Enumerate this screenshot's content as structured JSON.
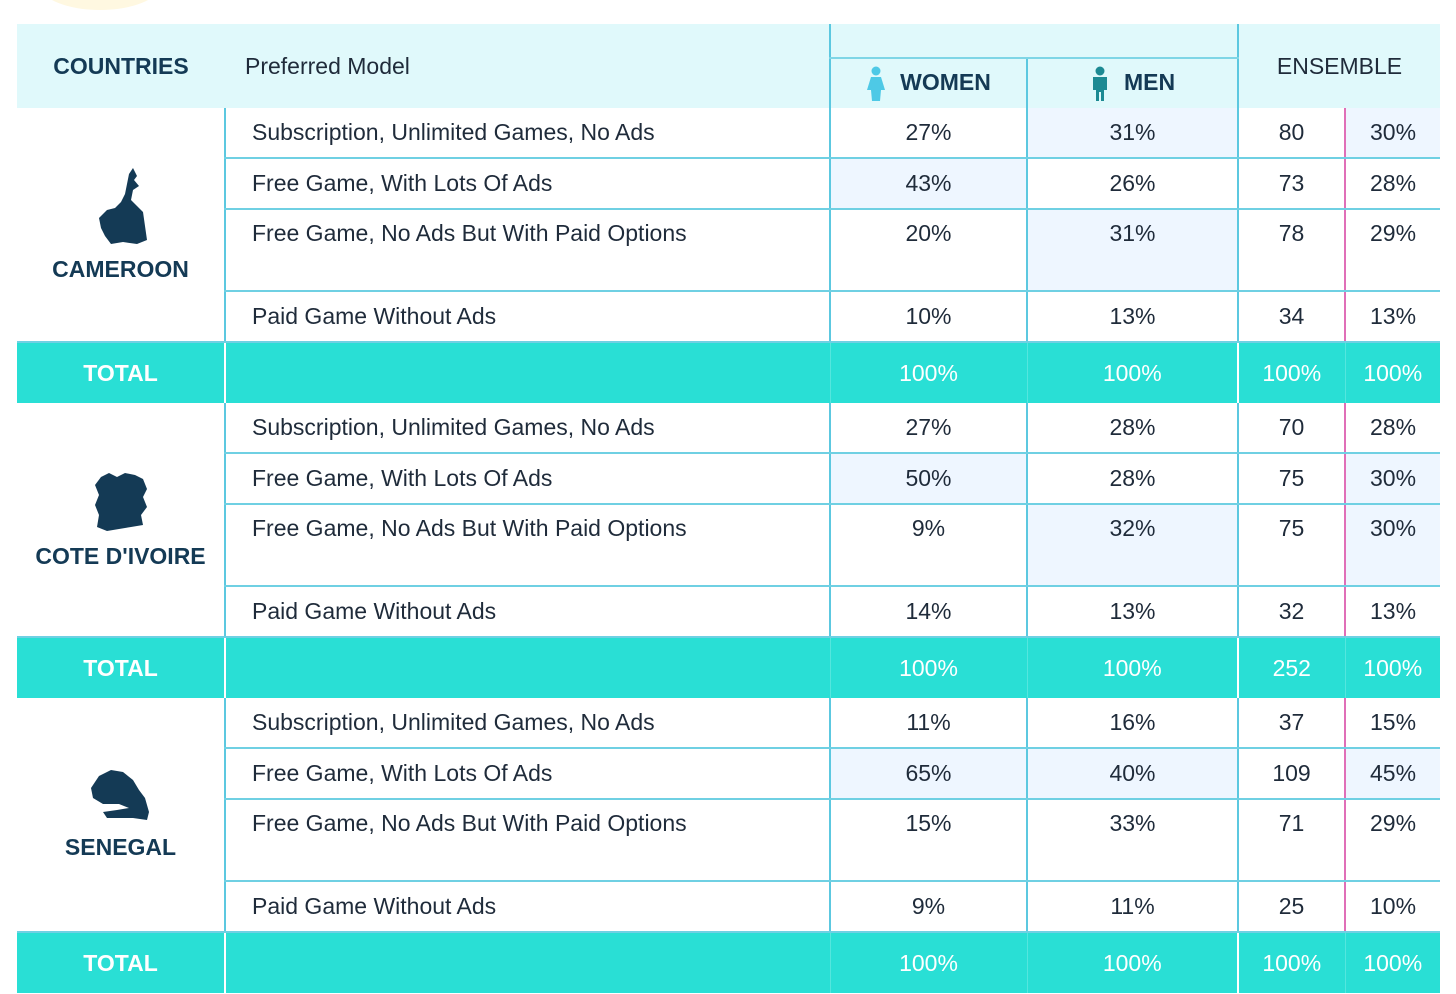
{
  "header": {
    "countries": "COUNTRIES",
    "preferred_model": "Preferred Model",
    "women": "WOMEN",
    "men": "MEN",
    "ensemble": "ENSEMBLE"
  },
  "colors": {
    "accent": "#29dfd5",
    "header_bg": "#e0f9fb",
    "country": "#143a55",
    "icon_women": "#4ec9e6",
    "icon_men": "#1d8a93"
  },
  "total_label": "TOTAL",
  "groups": [
    {
      "country": "CAMEROON",
      "map_icon": "cameroon-map-icon",
      "rows": [
        {
          "model": "Subscription, Unlimited Games, No Ads",
          "women": "27%",
          "men": "31%",
          "count": "80",
          "pct": "30%"
        },
        {
          "model": "Free Game, With Lots Of Ads",
          "women": "43%",
          "men": "26%",
          "count": "73",
          "pct": "28%"
        },
        {
          "model": "Free Game, No Ads But With Paid Options",
          "women": "20%",
          "men": "31%",
          "count": "78",
          "pct": "29%"
        },
        {
          "model": "Paid Game Without Ads",
          "women": "10%",
          "men": "13%",
          "count": "34",
          "pct": "13%"
        }
      ],
      "total": {
        "women": "100%",
        "men": "100%",
        "count": "100%",
        "pct": "100%"
      }
    },
    {
      "country": "COTE D'IVOIRE",
      "map_icon": "cote-divoire-map-icon",
      "rows": [
        {
          "model": "Subscription, Unlimited Games, No Ads",
          "women": "27%",
          "men": "28%",
          "count": "70",
          "pct": "28%"
        },
        {
          "model": "Free Game, With Lots Of Ads",
          "women": "50%",
          "men": "28%",
          "count": "75",
          "pct": "30%"
        },
        {
          "model": "Free Game, No Ads But With Paid Options",
          "women": "9%",
          "men": "32%",
          "count": "75",
          "pct": "30%"
        },
        {
          "model": "Paid Game Without Ads",
          "women": "14%",
          "men": "13%",
          "count": "32",
          "pct": "13%"
        }
      ],
      "total": {
        "women": "100%",
        "men": "100%",
        "count": "252",
        "pct": "100%"
      }
    },
    {
      "country": "SENEGAL",
      "map_icon": "senegal-map-icon",
      "rows": [
        {
          "model": "Subscription, Unlimited Games, No Ads",
          "women": "11%",
          "men": "16%",
          "count": "37",
          "pct": "15%"
        },
        {
          "model": "Free Game, With Lots Of Ads",
          "women": "65%",
          "men": "40%",
          "count": "109",
          "pct": "45%"
        },
        {
          "model": "Free Game, No Ads But With Paid Options",
          "women": "15%",
          "men": "33%",
          "count": "71",
          "pct": "29%"
        },
        {
          "model": "Paid Game Without Ads",
          "women": "9%",
          "men": "11%",
          "count": "25",
          "pct": "10%"
        }
      ],
      "total": {
        "women": "100%",
        "men": "100%",
        "count": "100%",
        "pct": "100%"
      }
    }
  ]
}
